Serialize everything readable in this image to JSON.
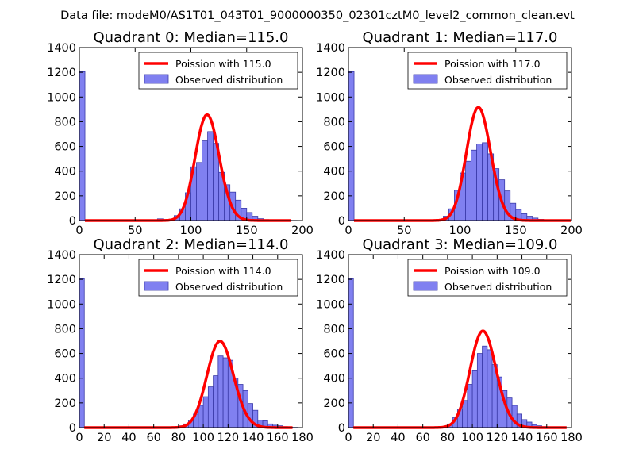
{
  "figure_title": "Data file: modeM0/AS1T01_043T01_9000000350_02301cztM0_level2_common_clean.evt",
  "colors": {
    "hist_fill": "#8080f0",
    "hist_edge": "#3a3aa8",
    "poisson_line": "#ff0000"
  },
  "chart_data": [
    {
      "type": "bar",
      "title": "Quadrant 0: Median=115.0",
      "xlim": [
        0,
        200
      ],
      "ylim": [
        0,
        1400
      ],
      "xticks": [
        0,
        50,
        100,
        150,
        200
      ],
      "yticks": [
        0,
        200,
        400,
        600,
        800,
        1000,
        1200,
        1400
      ],
      "bin_width": 5,
      "legend_position": "top-right",
      "series": [
        {
          "name": "Observed distribution",
          "bins": [
            [
              0,
              1205
            ],
            [
              5,
              2
            ],
            [
              10,
              1
            ],
            [
              15,
              1
            ],
            [
              20,
              1
            ],
            [
              25,
              1
            ],
            [
              30,
              1
            ],
            [
              35,
              1
            ],
            [
              40,
              1
            ],
            [
              45,
              1
            ],
            [
              50,
              1
            ],
            [
              55,
              1
            ],
            [
              60,
              1
            ],
            [
              65,
              1
            ],
            [
              70,
              14
            ],
            [
              75,
              8
            ],
            [
              80,
              6
            ],
            [
              85,
              40
            ],
            [
              90,
              95
            ],
            [
              95,
              225
            ],
            [
              100,
              435
            ],
            [
              105,
              470
            ],
            [
              110,
              645
            ],
            [
              115,
              720
            ],
            [
              120,
              625
            ],
            [
              125,
              390
            ],
            [
              130,
              290
            ],
            [
              135,
              230
            ],
            [
              140,
              165
            ],
            [
              145,
              100
            ],
            [
              150,
              65
            ],
            [
              155,
              35
            ],
            [
              160,
              15
            ],
            [
              165,
              8
            ],
            [
              170,
              5
            ],
            [
              175,
              4
            ],
            [
              180,
              3
            ],
            [
              185,
              2
            ],
            [
              190,
              1
            ]
          ]
        },
        {
          "name": "Poission with 115.0",
          "mu": 115.0,
          "x_end": 190
        }
      ]
    },
    {
      "type": "bar",
      "title": "Quadrant 1: Median=117.0",
      "xlim": [
        0,
        200
      ],
      "ylim": [
        0,
        1400
      ],
      "xticks": [
        0,
        50,
        100,
        150,
        200
      ],
      "yticks": [
        0,
        200,
        400,
        600,
        800,
        1000,
        1200,
        1400
      ],
      "bin_width": 5,
      "legend_position": "top-right",
      "series": [
        {
          "name": "Observed distribution",
          "bins": [
            [
              0,
              1205
            ],
            [
              5,
              2
            ],
            [
              10,
              1
            ],
            [
              15,
              1
            ],
            [
              20,
              1
            ],
            [
              25,
              1
            ],
            [
              30,
              1
            ],
            [
              35,
              1
            ],
            [
              40,
              1
            ],
            [
              45,
              1
            ],
            [
              50,
              1
            ],
            [
              55,
              1
            ],
            [
              60,
              1
            ],
            [
              65,
              1
            ],
            [
              70,
              1
            ],
            [
              75,
              2
            ],
            [
              80,
              5
            ],
            [
              85,
              35
            ],
            [
              90,
              95
            ],
            [
              95,
              245
            ],
            [
              100,
              385
            ],
            [
              105,
              480
            ],
            [
              110,
              570
            ],
            [
              115,
              620
            ],
            [
              120,
              630
            ],
            [
              125,
              540
            ],
            [
              130,
              420
            ],
            [
              135,
              330
            ],
            [
              140,
              240
            ],
            [
              145,
              140
            ],
            [
              150,
              90
            ],
            [
              155,
              55
            ],
            [
              160,
              35
            ],
            [
              165,
              20
            ],
            [
              170,
              10
            ],
            [
              175,
              5
            ],
            [
              180,
              3
            ],
            [
              185,
              2
            ],
            [
              190,
              1
            ],
            [
              195,
              1
            ]
          ]
        },
        {
          "name": "Poission with 117.0",
          "mu": 117.0,
          "x_end": 200
        }
      ]
    },
    {
      "type": "bar",
      "title": "Quadrant 2: Median=114.0",
      "xlim": [
        0,
        180
      ],
      "ylim": [
        0,
        1400
      ],
      "xticks": [
        0,
        20,
        40,
        60,
        80,
        100,
        120,
        140,
        160,
        180
      ],
      "yticks": [
        0,
        200,
        400,
        600,
        800,
        1000,
        1200,
        1400
      ],
      "bin_width": 4,
      "legend_position": "top-right",
      "series": [
        {
          "name": "Observed distribution",
          "bins": [
            [
              0,
              1205
            ],
            [
              4,
              2
            ],
            [
              8,
              1
            ],
            [
              12,
              1
            ],
            [
              16,
              1
            ],
            [
              20,
              1
            ],
            [
              24,
              1
            ],
            [
              28,
              1
            ],
            [
              32,
              1
            ],
            [
              36,
              1
            ],
            [
              40,
              1
            ],
            [
              44,
              1
            ],
            [
              48,
              1
            ],
            [
              52,
              1
            ],
            [
              56,
              1
            ],
            [
              60,
              1
            ],
            [
              64,
              1
            ],
            [
              68,
              1
            ],
            [
              72,
              2
            ],
            [
              76,
              5
            ],
            [
              80,
              15
            ],
            [
              84,
              30
            ],
            [
              88,
              60
            ],
            [
              92,
              110
            ],
            [
              96,
              180
            ],
            [
              100,
              250
            ],
            [
              104,
              330
            ],
            [
              108,
              420
            ],
            [
              112,
              580
            ],
            [
              116,
              565
            ],
            [
              120,
              545
            ],
            [
              124,
              400
            ],
            [
              128,
              350
            ],
            [
              132,
              300
            ],
            [
              136,
              195
            ],
            [
              140,
              140
            ],
            [
              144,
              60
            ],
            [
              148,
              55
            ],
            [
              152,
              30
            ],
            [
              156,
              20
            ],
            [
              160,
              15
            ],
            [
              164,
              8
            ],
            [
              168,
              4
            ],
            [
              172,
              2
            ]
          ]
        },
        {
          "name": "Poission with 114.0",
          "mu": 114.0,
          "x_end": 172
        }
      ]
    },
    {
      "type": "bar",
      "title": "Quadrant 3: Median=109.0",
      "xlim": [
        0,
        180
      ],
      "ylim": [
        0,
        1400
      ],
      "xticks": [
        0,
        20,
        40,
        60,
        80,
        100,
        120,
        140,
        160,
        180
      ],
      "yticks": [
        0,
        200,
        400,
        600,
        800,
        1000,
        1200,
        1400
      ],
      "bin_width": 4,
      "legend_position": "top-right",
      "series": [
        {
          "name": "Observed distribution",
          "bins": [
            [
              0,
              1205
            ],
            [
              4,
              2
            ],
            [
              8,
              1
            ],
            [
              12,
              1
            ],
            [
              16,
              1
            ],
            [
              20,
              1
            ],
            [
              24,
              1
            ],
            [
              28,
              1
            ],
            [
              32,
              1
            ],
            [
              36,
              1
            ],
            [
              40,
              1
            ],
            [
              44,
              1
            ],
            [
              48,
              1
            ],
            [
              52,
              1
            ],
            [
              56,
              1
            ],
            [
              60,
              1
            ],
            [
              64,
              1
            ],
            [
              68,
              1
            ],
            [
              72,
              2
            ],
            [
              76,
              10
            ],
            [
              80,
              30
            ],
            [
              84,
              80
            ],
            [
              88,
              150
            ],
            [
              92,
              220
            ],
            [
              96,
              350
            ],
            [
              100,
              460
            ],
            [
              104,
              600
            ],
            [
              108,
              660
            ],
            [
              112,
              630
            ],
            [
              116,
              510
            ],
            [
              120,
              410
            ],
            [
              124,
              300
            ],
            [
              128,
              240
            ],
            [
              132,
              180
            ],
            [
              136,
              110
            ],
            [
              140,
              65
            ],
            [
              144,
              45
            ],
            [
              148,
              25
            ],
            [
              152,
              15
            ],
            [
              156,
              8
            ],
            [
              160,
              4
            ],
            [
              164,
              2
            ]
          ]
        },
        {
          "name": "Poission with 109.0",
          "mu": 109.0,
          "x_end": 176
        }
      ]
    }
  ]
}
